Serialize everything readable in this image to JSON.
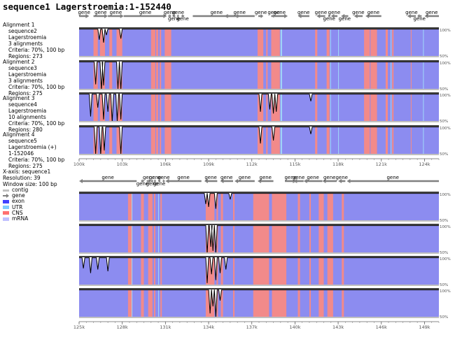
{
  "title": "sequence1 Lagerstroemia:1-152440",
  "alignments": [
    {
      "title": "Alignment 1",
      "lines": [
        "sequence2",
        "Lagerstroemia",
        "3 alignments",
        "Criteria: 70%, 100 bp",
        "Regions: 273"
      ]
    },
    {
      "title": "Alignment 2",
      "lines": [
        "sequence3",
        "Lagerstroemia",
        "3 alignments",
        "Criteria: 70%, 100 bp",
        "Regions: 275"
      ]
    },
    {
      "title": "Alignment 3",
      "lines": [
        "sequence4",
        "Lagerstroemia",
        "10 alignments",
        "Criteria: 70%, 100 bp",
        "Regions: 280"
      ]
    },
    {
      "title": "Alignment 4",
      "lines": [
        "sequence5",
        "Lagerstroemia (+)",
        "1-152046",
        "Criteria: 70%, 100 bp",
        "Regions: 275"
      ]
    }
  ],
  "xaxis_info": [
    "X-axis: sequence1",
    "Resolution: 39",
    "Window size: 100 bp"
  ],
  "legend": [
    {
      "label": "contig",
      "color": "#c0c0c0",
      "shape": "bar"
    },
    {
      "label": "gene",
      "color": "#808080",
      "shape": "arrow"
    },
    {
      "label": "exon",
      "color": "#4040ff",
      "shape": "box"
    },
    {
      "label": "UTR",
      "color": "#80ccff",
      "shape": "box"
    },
    {
      "label": "CNS",
      "color": "#ff7070",
      "shape": "box"
    },
    {
      "label": "mRNA",
      "color": "#c0c0ff",
      "shape": "box"
    }
  ],
  "colors": {
    "exon_bg": "#8c8cf0",
    "cns_bg": "#f28a8a",
    "utr_bg": "#a0d8f8",
    "gene": "#808080",
    "contig": "#c0c0c0"
  },
  "chart_data": {
    "type": "area",
    "title": "sequence1 Lagerstroemia:1-152440",
    "xlabel": "sequence1",
    "y_range": [
      50,
      100
    ],
    "y_tick_labels": [
      "100%",
      "50%"
    ],
    "panels": [
      {
        "x_range": [
          100000,
          125000
        ],
        "tick_labels": [
          "100k",
          "103k",
          "106k",
          "109k",
          "112k",
          "115k",
          "118k",
          "121k",
          "124k"
        ],
        "tick_values": [
          100000,
          103000,
          106000,
          109000,
          112000,
          115000,
          118000,
          121000,
          124000
        ],
        "genes": [
          {
            "label": "gene",
            "start": 100000,
            "end": 100700,
            "strand": "+"
          },
          {
            "label": "gene",
            "start": 101000,
            "end": 102000,
            "strand": "+"
          },
          {
            "label": "gene",
            "start": 102000,
            "end": 103100,
            "strand": "+"
          },
          {
            "label": "gene",
            "start": 103100,
            "end": 106100,
            "strand": "+"
          },
          {
            "label": "gene",
            "start": 106200,
            "end": 106400,
            "strand": "+"
          },
          {
            "label": "gene",
            "start": 106500,
            "end": 106700,
            "strand": "+"
          },
          {
            "label": "gene",
            "start": 106800,
            "end": 106950,
            "strand": "+"
          },
          {
            "label": "gene",
            "start": 107100,
            "end": 107300,
            "strand": "-"
          },
          {
            "label": "gene",
            "start": 107900,
            "end": 111200,
            "strand": "+"
          },
          {
            "label": "gene",
            "start": 110100,
            "end": 112200,
            "strand": "-"
          },
          {
            "label": "gene",
            "start": 112450,
            "end": 112800,
            "strand": "+"
          },
          {
            "label": "gene",
            "start": 113350,
            "end": 114500,
            "strand": "+"
          },
          {
            "label": "gene",
            "start": 113450,
            "end": 113600,
            "strand": "-"
          },
          {
            "label": "gene",
            "start": 115200,
            "end": 116000,
            "strand": "-"
          },
          {
            "label": "gene",
            "start": 116500,
            "end": 117100,
            "strand": "-"
          },
          {
            "label": "gene",
            "start": 117300,
            "end": 117450,
            "strand": "-"
          },
          {
            "label": "gene",
            "start": 117500,
            "end": 117950,
            "strand": "-"
          },
          {
            "label": "gene",
            "start": 118200,
            "end": 118700,
            "strand": "-"
          },
          {
            "label": "gene",
            "start": 119100,
            "end": 119700,
            "strand": "-"
          },
          {
            "label": "gene",
            "start": 119900,
            "end": 121000,
            "strand": "-"
          },
          {
            "label": "gene",
            "start": 122800,
            "end": 123400,
            "strand": "-"
          },
          {
            "label": "gene",
            "start": 123500,
            "end": 123800,
            "strand": "-"
          },
          {
            "label": "gene",
            "start": 124000,
            "end": 125000,
            "strand": "-"
          }
        ],
        "cns_regions": [
          [
            101000,
            101300
          ],
          [
            101450,
            101800
          ],
          [
            102100,
            102300
          ],
          [
            102600,
            103000
          ],
          [
            105000,
            105300
          ],
          [
            105350,
            105500
          ],
          [
            105600,
            105700
          ],
          [
            105950,
            106400
          ],
          [
            112400,
            112800
          ],
          [
            113000,
            113100
          ],
          [
            113350,
            113950
          ],
          [
            116400,
            116550
          ],
          [
            117200,
            117400
          ],
          [
            119800,
            120200
          ],
          [
            120250,
            120700
          ],
          [
            121300,
            121450
          ],
          [
            121750,
            121850
          ],
          [
            123050,
            123100
          ]
        ],
        "utr_regions": [
          [
            114000,
            114100
          ],
          [
            117450,
            117500
          ],
          [
            118000,
            118050
          ],
          [
            121650,
            121700
          ],
          [
            123900,
            123950
          ]
        ],
        "dips": [
          [
            [
              101400,
              80
            ],
            [
              101700,
              75
            ],
            [
              101900,
              88
            ],
            [
              102900,
              82
            ]
          ],
          [
            [
              101150,
              60
            ],
            [
              101550,
              50
            ],
            [
              101700,
              58
            ],
            [
              102700,
              52
            ],
            [
              102900,
              50
            ]
          ],
          [
            [
              100800,
              60
            ],
            [
              101300,
              75
            ],
            [
              101700,
              55
            ],
            [
              102000,
              68
            ],
            [
              102300,
              50
            ],
            [
              102650,
              52
            ],
            [
              102900,
              55
            ],
            [
              112600,
              68
            ],
            [
              113250,
              72
            ],
            [
              113500,
              65
            ],
            [
              113700,
              68
            ],
            [
              116100,
              86
            ]
          ],
          [
            [
              101150,
              52
            ],
            [
              101500,
              50
            ],
            [
              101750,
              58
            ],
            [
              102900,
              52
            ],
            [
              112600,
              70
            ],
            [
              113500,
              75
            ],
            [
              116100,
              86
            ]
          ]
        ]
      },
      {
        "x_range": [
          125000,
          150000
        ],
        "tick_labels": [
          "125k",
          "128k",
          "131k",
          "134k",
          "137k",
          "140k",
          "143k",
          "146k",
          "149k"
        ],
        "tick_values": [
          125000,
          128000,
          131000,
          134000,
          137000,
          140000,
          143000,
          146000,
          149000
        ],
        "genes": [
          {
            "label": "gene",
            "start": 125000,
            "end": 129000,
            "strand": "-"
          },
          {
            "label": "gene",
            "start": 129300,
            "end": 129500,
            "strand": "-"
          },
          {
            "label": "gene",
            "start": 129700,
            "end": 130000,
            "strand": "+"
          },
          {
            "label": "gene",
            "start": 130000,
            "end": 130150,
            "strand": "+"
          },
          {
            "label": "gene",
            "start": 130200,
            "end": 130350,
            "strand": "+"
          },
          {
            "label": "gene",
            "start": 130500,
            "end": 130650,
            "strand": "-"
          },
          {
            "label": "gene",
            "start": 130800,
            "end": 130950,
            "strand": "-"
          },
          {
            "label": "gene",
            "start": 131000,
            "end": 133500,
            "strand": "-"
          },
          {
            "label": "gene",
            "start": 133700,
            "end": 134600,
            "strand": "-"
          },
          {
            "label": "gene",
            "start": 134800,
            "end": 135700,
            "strand": "-"
          },
          {
            "label": "gene",
            "start": 135800,
            "end": 137200,
            "strand": "-"
          },
          {
            "label": "gene",
            "start": 137400,
            "end": 138500,
            "strand": "-"
          },
          {
            "label": "gene",
            "start": 139300,
            "end": 140100,
            "strand": "+"
          },
          {
            "label": "gene",
            "start": 139900,
            "end": 140600,
            "strand": "-"
          },
          {
            "label": "gene",
            "start": 140600,
            "end": 141900,
            "strand": "-"
          },
          {
            "label": "gene",
            "start": 141900,
            "end": 142900,
            "strand": "-"
          },
          {
            "label": "gene",
            "start": 143000,
            "end": 143500,
            "strand": "-"
          },
          {
            "label": "gene",
            "start": 143600,
            "end": 150000,
            "strand": "-"
          }
        ],
        "cns_regions": [
          [
            128400,
            128700
          ],
          [
            129300,
            129500
          ],
          [
            129800,
            130100
          ],
          [
            130200,
            130300
          ],
          [
            130650,
            130750
          ],
          [
            133800,
            134400
          ],
          [
            134550,
            134650
          ],
          [
            134850,
            135000
          ],
          [
            135700,
            135800
          ],
          [
            137100,
            138200
          ],
          [
            138400,
            139400
          ],
          [
            140200,
            140350
          ],
          [
            141000,
            141100
          ],
          [
            141650,
            142000
          ],
          [
            142250,
            142650
          ],
          [
            143250,
            143400
          ]
        ],
        "utr_regions": [
          [
            128650,
            128700
          ],
          [
            130500,
            130550
          ]
        ],
        "dips": [
          [
            [
              133800,
              80
            ],
            [
              134000,
              75
            ],
            [
              134500,
              72
            ],
            [
              135500,
              88
            ]
          ],
          [
            [
              133900,
              50
            ],
            [
              134150,
              62
            ],
            [
              134300,
              55
            ],
            [
              134500,
              50
            ]
          ],
          [
            [
              125300,
              80
            ],
            [
              125800,
              72
            ],
            [
              126300,
              78
            ],
            [
              127000,
              75
            ],
            [
              133900,
              55
            ],
            [
              134200,
              70
            ],
            [
              134500,
              60
            ],
            [
              134800,
              72
            ],
            [
              135200,
              78
            ]
          ],
          [
            [
              134100,
              58
            ],
            [
              134300,
              70
            ],
            [
              134500,
              52
            ],
            [
              134800,
              80
            ]
          ]
        ]
      }
    ]
  }
}
